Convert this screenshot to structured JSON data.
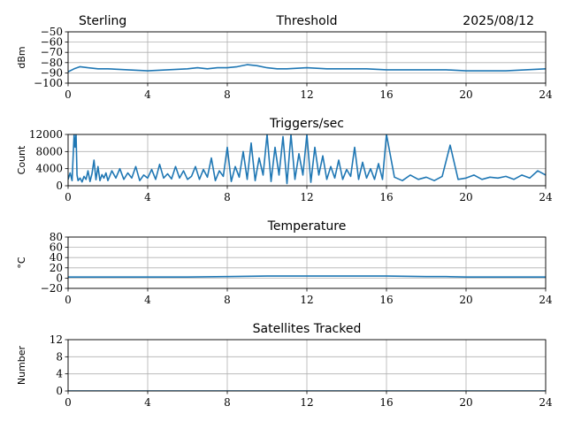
{
  "header": {
    "station": "Sterling",
    "date": "2025/08/12"
  },
  "colors": {
    "series": "#1f77b4",
    "grid": "#b0b0b0",
    "axis": "#000000"
  },
  "chart_data": [
    {
      "type": "line",
      "title": "Threshold",
      "xlabel": "",
      "ylabel": "dBm",
      "xlim": [
        0,
        24
      ],
      "ylim": [
        -100,
        -50
      ],
      "xticks": [
        "0",
        "4",
        "8",
        "12",
        "16",
        "20",
        "24"
      ],
      "yticks": [
        "−50",
        "−60",
        "−70",
        "−80",
        "−90",
        "−100"
      ],
      "grid": true,
      "series": [
        {
          "x": [
            0,
            0.3,
            0.6,
            1,
            1.5,
            2,
            3,
            4,
            5,
            6,
            6.5,
            7,
            7.5,
            8,
            8.5,
            9,
            9.5,
            10,
            10.5,
            11,
            12,
            13,
            14,
            15,
            16,
            17,
            18,
            19,
            20,
            21,
            22,
            23,
            24
          ],
          "y": [
            -89,
            -86,
            -84,
            -85,
            -86,
            -86,
            -87,
            -88,
            -87,
            -86,
            -85,
            -86,
            -85,
            -85,
            -84,
            -82,
            -83,
            -85,
            -86,
            -86,
            -85,
            -86,
            -86,
            -86,
            -87,
            -87,
            -87,
            -87,
            -88,
            -88,
            -88,
            -87,
            -86
          ]
        }
      ]
    },
    {
      "type": "line",
      "title": "Triggers/sec",
      "xlabel": "",
      "ylabel": "Count",
      "xlim": [
        0,
        24
      ],
      "ylim": [
        0,
        12000
      ],
      "xticks": [
        "0",
        "4",
        "8",
        "12",
        "16",
        "20",
        "24"
      ],
      "yticks": [
        "0",
        "4000",
        "8000",
        "12000"
      ],
      "grid": true,
      "series": [
        {
          "x": [
            0,
            0.1,
            0.2,
            0.3,
            0.35,
            0.4,
            0.45,
            0.5,
            0.6,
            0.7,
            0.8,
            0.9,
            1.0,
            1.1,
            1.2,
            1.3,
            1.4,
            1.5,
            1.6,
            1.7,
            1.8,
            1.9,
            2.0,
            2.2,
            2.4,
            2.6,
            2.8,
            3.0,
            3.2,
            3.4,
            3.6,
            3.8,
            4.0,
            4.2,
            4.4,
            4.6,
            4.8,
            5.0,
            5.2,
            5.4,
            5.6,
            5.8,
            6.0,
            6.2,
            6.4,
            6.6,
            6.8,
            7.0,
            7.2,
            7.4,
            7.6,
            7.8,
            8.0,
            8.2,
            8.4,
            8.6,
            8.8,
            9.0,
            9.2,
            9.4,
            9.6,
            9.8,
            10.0,
            10.2,
            10.4,
            10.6,
            10.8,
            11.0,
            11.2,
            11.4,
            11.6,
            11.8,
            12.0,
            12.2,
            12.4,
            12.6,
            12.8,
            13.0,
            13.2,
            13.4,
            13.6,
            13.8,
            14.0,
            14.2,
            14.4,
            14.6,
            14.8,
            15.0,
            15.2,
            15.4,
            15.6,
            15.8,
            16.0,
            16.4,
            16.8,
            17.2,
            17.6,
            18.0,
            18.4,
            18.8,
            19.2,
            19.6,
            20.0,
            20.4,
            20.8,
            21.2,
            21.6,
            22.0,
            22.4,
            22.8,
            23.2,
            23.6,
            24.0
          ],
          "y": [
            1500,
            3000,
            1200,
            12000,
            9000,
            12000,
            2500,
            1200,
            1800,
            900,
            2200,
            1500,
            3500,
            1000,
            2800,
            6000,
            1400,
            4500,
            1200,
            2600,
            1800,
            3000,
            1200,
            3500,
            1800,
            4000,
            1500,
            3000,
            1800,
            4500,
            1200,
            2500,
            1800,
            3800,
            1500,
            5000,
            1800,
            2800,
            1600,
            4500,
            1800,
            3500,
            1500,
            2200,
            4500,
            1500,
            3800,
            2000,
            6500,
            1200,
            3500,
            2200,
            9000,
            1000,
            4500,
            2000,
            8000,
            1500,
            10000,
            1200,
            6500,
            2500,
            12000,
            1000,
            9000,
            2500,
            11500,
            500,
            12000,
            1500,
            7500,
            2500,
            12000,
            800,
            9000,
            2500,
            7000,
            1500,
            4500,
            1800,
            6000,
            1500,
            3800,
            2200,
            9000,
            1500,
            5500,
            1800,
            4000,
            1500,
            5200,
            1500,
            12000,
            2000,
            1200,
            2500,
            1500,
            2000,
            1200,
            2200,
            9500,
            1500,
            1800,
            2500,
            1500,
            2000,
            1800,
            2200,
            1500,
            2500,
            1800,
            3500,
            2500
          ]
        }
      ]
    },
    {
      "type": "line",
      "title": "Temperature",
      "xlabel": "",
      "ylabel": "°C",
      "xlim": [
        0,
        24
      ],
      "ylim": [
        -20,
        80
      ],
      "xticks": [
        "0",
        "4",
        "8",
        "12",
        "16",
        "20",
        "24"
      ],
      "yticks": [
        "−20",
        "0",
        "20",
        "40",
        "60",
        "80"
      ],
      "grid": true,
      "series": [
        {
          "x": [
            0,
            2,
            4,
            6,
            8,
            10,
            12,
            14,
            16,
            18,
            19,
            20,
            22,
            24
          ],
          "y": [
            2,
            2,
            2,
            2,
            3,
            4,
            4,
            4,
            4,
            3,
            3,
            2,
            2,
            2
          ]
        }
      ]
    },
    {
      "type": "line",
      "title": "Satellites Tracked",
      "xlabel": "",
      "ylabel": "Number",
      "xlim": [
        0,
        24
      ],
      "ylim": [
        0,
        12
      ],
      "xticks": [
        "0",
        "4",
        "8",
        "12",
        "16",
        "20",
        "24"
      ],
      "yticks": [
        "0",
        "4",
        "8",
        "12"
      ],
      "grid": true,
      "series": [
        {
          "x": [
            0,
            24
          ],
          "y": [
            0,
            0
          ]
        }
      ]
    }
  ]
}
